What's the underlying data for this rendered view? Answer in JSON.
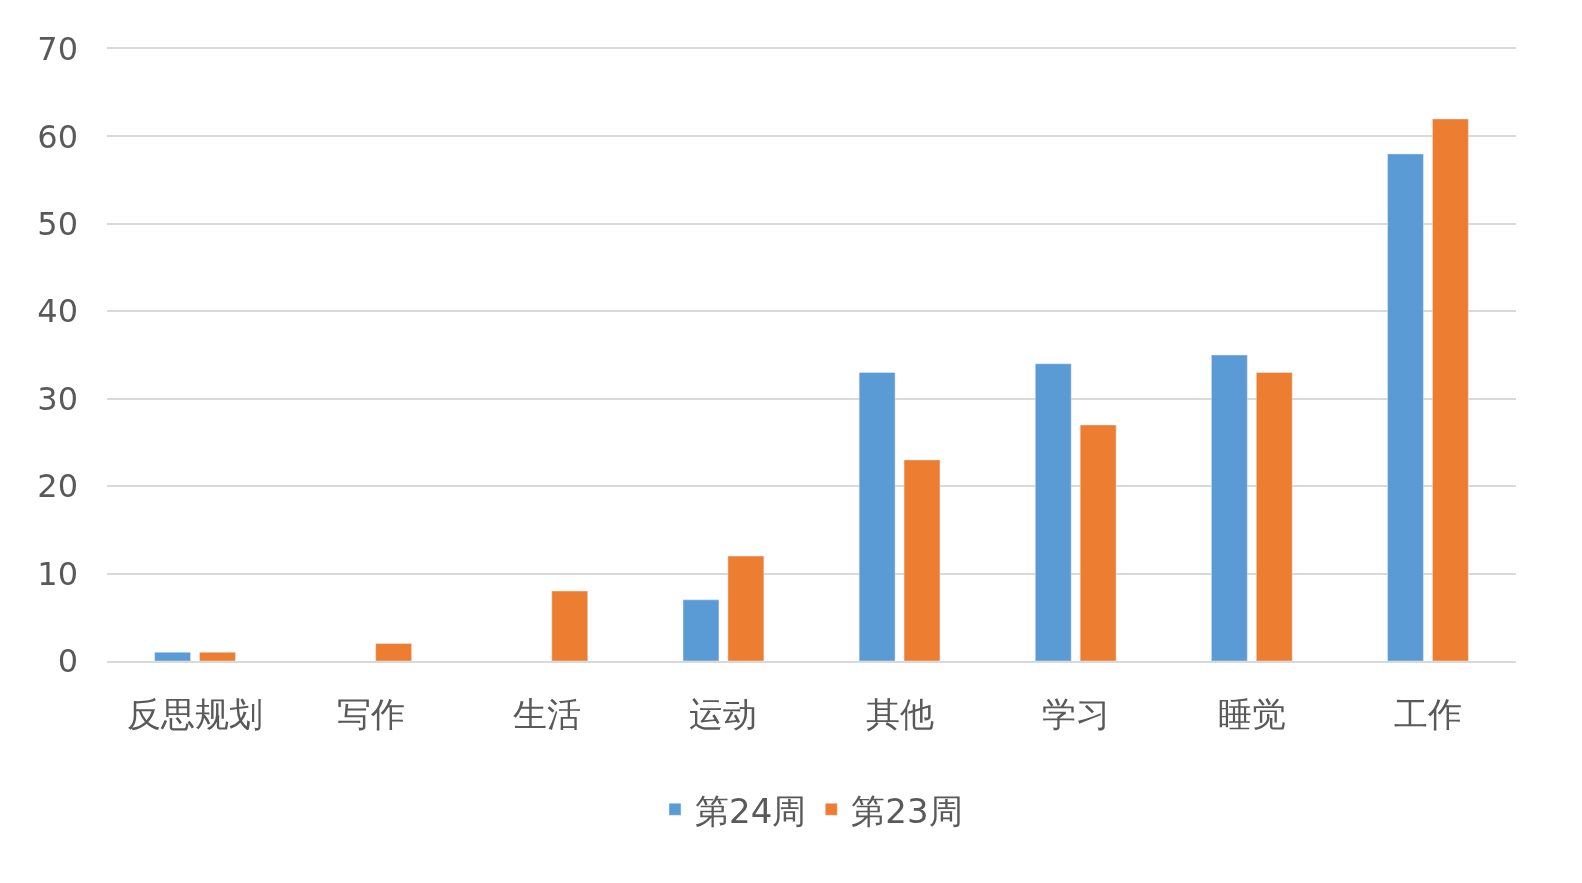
{
  "chart_data": {
    "type": "bar",
    "categories": [
      "反思规划",
      "写作",
      "生活",
      "运动",
      "其他",
      "学习",
      "睡觉",
      "工作"
    ],
    "series": [
      {
        "name": "第24周",
        "color": "#5b9bd5",
        "values": [
          1,
          null,
          null,
          7,
          33,
          34,
          35,
          58
        ]
      },
      {
        "name": "第23周",
        "color": "#ed7d31",
        "values": [
          1,
          2,
          8,
          12,
          23,
          27,
          33,
          62
        ]
      }
    ],
    "ylim": [
      0,
      70
    ],
    "yticks": [
      0,
      10,
      20,
      30,
      40,
      50,
      60,
      70
    ],
    "grid": "y",
    "legend": "bottom"
  }
}
